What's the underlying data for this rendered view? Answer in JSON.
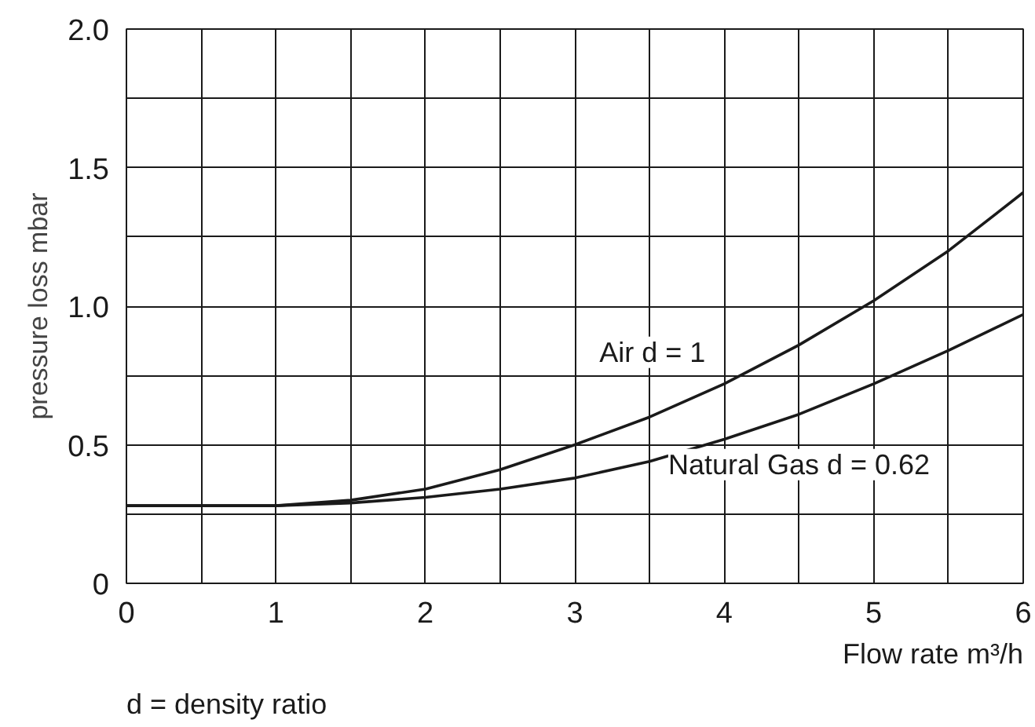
{
  "chart_data": {
    "type": "line",
    "xlabel": "Flow rate m³/h",
    "ylabel": "pressure loss mbar",
    "annotations": [
      "d = density ratio"
    ],
    "x": [
      0,
      0.5,
      1,
      1.5,
      2,
      2.5,
      3,
      3.5,
      4,
      4.5,
      5,
      5.5,
      6
    ],
    "series": [
      {
        "name": "Air d = 1",
        "color": "#1a1a1a",
        "values": [
          0.28,
          0.28,
          0.28,
          0.3,
          0.34,
          0.41,
          0.5,
          0.6,
          0.72,
          0.86,
          1.02,
          1.2,
          1.41
        ]
      },
      {
        "name": "Natural Gas d = 0.62",
        "color": "#1a1a1a",
        "values": [
          0.28,
          0.28,
          0.28,
          0.29,
          0.31,
          0.34,
          0.38,
          0.44,
          0.52,
          0.61,
          0.72,
          0.84,
          0.97
        ]
      }
    ],
    "xlim": [
      0,
      6
    ],
    "ylim": [
      0,
      2
    ],
    "xticks": [
      0,
      {
        "value": 0.5,
        "label": null
      },
      1,
      {
        "value": 1.5,
        "label": null
      },
      2,
      {
        "value": 2.5,
        "label": null
      },
      3,
      {
        "value": 3.5,
        "label": null
      },
      4,
      {
        "value": 4.5,
        "label": null
      },
      5,
      {
        "value": 5.5,
        "label": null
      },
      6
    ],
    "yticks": [
      0,
      {
        "value": 0.25,
        "label": null
      },
      {
        "value": 0.5,
        "label": "0.5"
      },
      {
        "value": 0.75,
        "label": null
      },
      {
        "value": 1.0,
        "label": "1.0"
      },
      {
        "value": 1.25,
        "label": null
      },
      {
        "value": 1.5,
        "label": "1.5"
      },
      {
        "value": 1.75,
        "label": null
      },
      {
        "value": 2.0,
        "label": "2.0"
      }
    ],
    "grid": true,
    "marker": "none",
    "line_style": "solid"
  }
}
